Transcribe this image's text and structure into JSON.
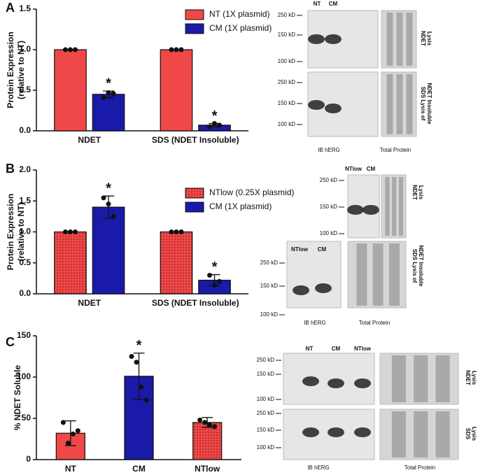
{
  "panel_labels": [
    "A",
    "B",
    "C"
  ],
  "chart_data": [
    {
      "type": "bar",
      "categories": [
        "NDET",
        "SDS (NDET Insoluble)"
      ],
      "ylabel": [
        "Protein Expression",
        "(relative to NT)"
      ],
      "ylim": [
        0,
        1.5
      ],
      "yticks": [
        {
          "value": 0,
          "label": "0.0"
        },
        0.5,
        {
          "value": 1,
          "label": "1.0"
        },
        1.5
      ],
      "series": [
        {
          "name": "NT (1X plasmid)",
          "color": "#f04848",
          "pattern": "solid",
          "values": [
            1.0,
            1.0
          ],
          "errors": [
            0,
            0
          ],
          "points": [
            [
              1,
              1,
              1
            ],
            [
              1,
              1,
              1
            ]
          ]
        },
        {
          "name": "CM (1X plasmid)",
          "color": "#1a1aa8",
          "pattern": "solid",
          "values": [
            0.45,
            0.07
          ],
          "errors": [
            0.04,
            0.02
          ],
          "points": [
            [
              0.41,
              0.47,
              0.46
            ],
            [
              0.05,
              0.09,
              0.07
            ]
          ],
          "annotations": [
            "*",
            "*"
          ]
        }
      ]
    },
    {
      "type": "bar",
      "categories": [
        "NDET",
        "SDS (NDET Insoluble)"
      ],
      "ylabel": [
        "Protein Expression",
        "(relative to NT)"
      ],
      "ylim": [
        0,
        2.0
      ],
      "yticks": [
        {
          "value": 0,
          "label": "0.0"
        },
        0.5,
        {
          "value": 1,
          "label": "1.0"
        },
        1.5,
        {
          "value": 2,
          "label": "2.0"
        }
      ],
      "series": [
        {
          "name": "NTlow (0.25X plasmid)",
          "color": "#f04848",
          "pattern": "dotted",
          "values": [
            1.0,
            1.0
          ],
          "errors": [
            0,
            0
          ],
          "points": [
            [
              1,
              1,
              1
            ],
            [
              1,
              1,
              1
            ]
          ]
        },
        {
          "name": "CM (1X plasmid)",
          "color": "#1a1aa8",
          "pattern": "solid",
          "values": [
            1.4,
            0.22
          ],
          "errors": [
            0.18,
            0.09
          ],
          "points": [
            [
              1.55,
              1.45,
              1.25
            ],
            [
              0.3,
              0.14,
              0.2
            ]
          ],
          "annotations": [
            "*",
            "*"
          ]
        }
      ]
    },
    {
      "type": "bar",
      "categories": [
        "NT",
        "CM",
        "NTlow"
      ],
      "ylabel": [
        "% NDET Soluble"
      ],
      "ylim": [
        0,
        150
      ],
      "yticks": [
        0,
        50,
        100,
        150
      ],
      "values": [
        32,
        101,
        45
      ],
      "errors": [
        15,
        28,
        6
      ],
      "colors": [
        "#f04848",
        "#1a1aa8",
        "#f04848"
      ],
      "patterns": [
        "solid",
        "solid",
        "dotted"
      ],
      "points": [
        [
          45,
          20,
          31,
          35
        ],
        [
          125,
          118,
          88,
          72
        ],
        [
          48,
          45,
          42,
          40
        ]
      ],
      "annotations": [
        null,
        "*",
        null
      ]
    }
  ],
  "blots": [
    {
      "lanes": [
        "NT",
        "CM"
      ],
      "markers_top": [
        "250 kD",
        "150 kD",
        "100 kD"
      ],
      "markers_bottom": [
        "250 kD",
        "150 kD",
        "100 kD"
      ],
      "side_top": [
        "NDET",
        "Lysis"
      ],
      "side_bottom": [
        "SDS Lysis of",
        "NDET Insoluble"
      ],
      "captions": [
        "IB hERG",
        "Total Protein"
      ]
    },
    {
      "lanes": [
        "NTlow",
        "CM",
        "NTlow",
        "CM"
      ],
      "markers_top": [
        "250 kD",
        "150 kD",
        "100 kD"
      ],
      "markers_bottom": [
        "250 kD",
        "150 kD",
        "100 kD"
      ],
      "side_top": [
        "NDET",
        "Lysis"
      ],
      "side_bottom": [
        "SDS Lysis of",
        "NDET Insoluble"
      ],
      "captions": [
        "IB hERG",
        "Total Protein"
      ]
    },
    {
      "lanes": [
        "NT",
        "CM",
        "NTlow"
      ],
      "markers_top": [
        "250 kD",
        "150 kD",
        "100 kD"
      ],
      "markers_bottom": [
        "250 kD",
        "150 kD",
        "100 kD"
      ],
      "side_top": [
        "NDET",
        "Lysis"
      ],
      "side_bottom": [
        "SDS",
        "Lysis"
      ],
      "captions": [
        "IB hERG",
        "Total Protein"
      ]
    }
  ]
}
